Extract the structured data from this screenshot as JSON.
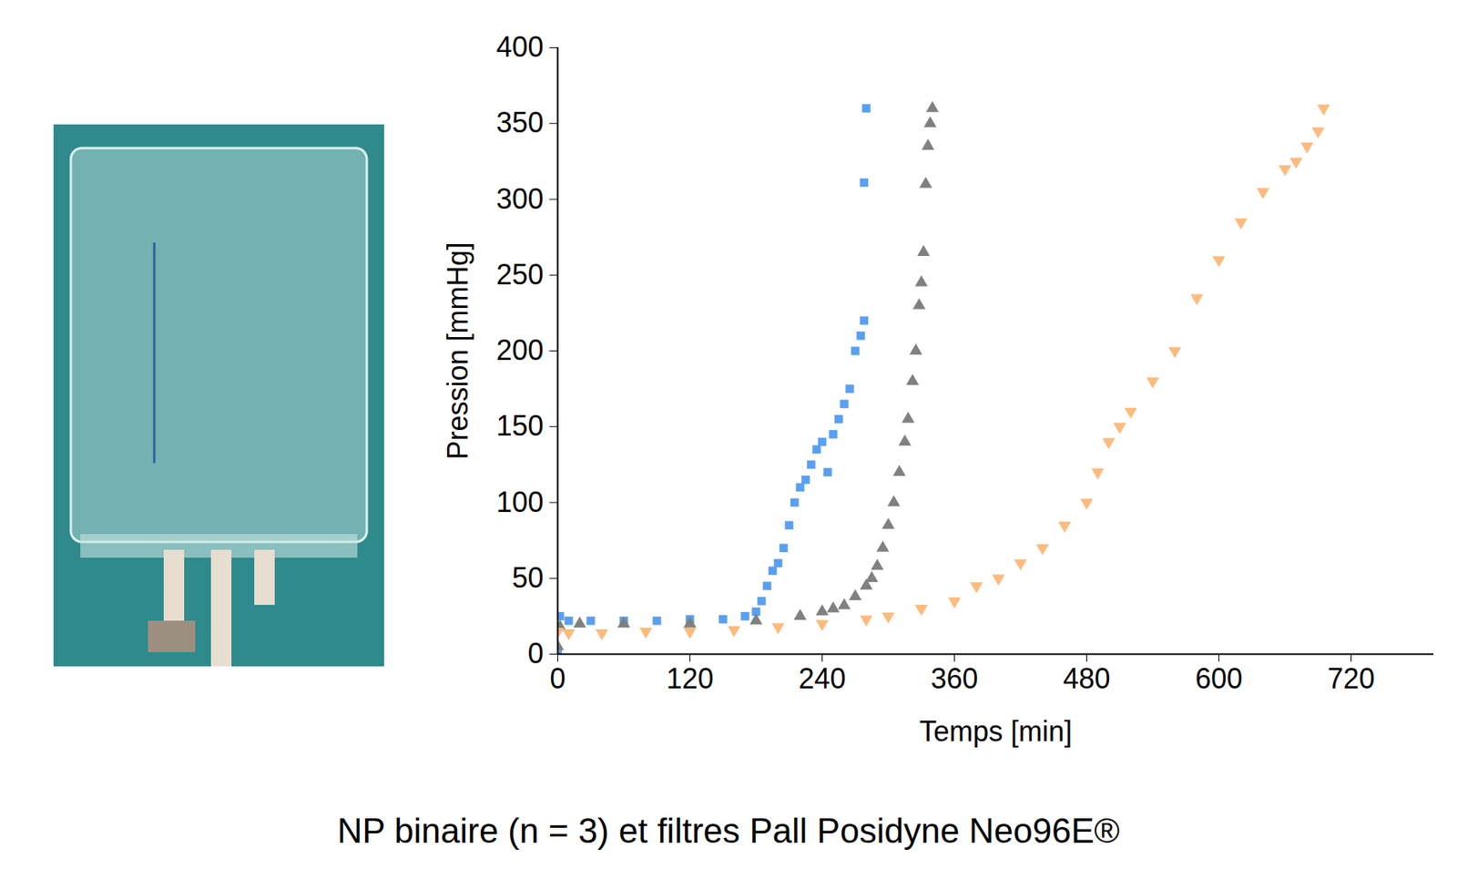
{
  "chart_data": {
    "type": "scatter",
    "title": "NP binaire (n = 3) et filtres Pall Posidyne Neo96E®",
    "x_label": "Temps [min]",
    "y_label": "Pression [mmHg]",
    "xlim": [
      0,
      795
    ],
    "ylim": [
      0,
      400
    ],
    "xticks": [
      0,
      120,
      240,
      360,
      480,
      600,
      720
    ],
    "yticks": [
      0,
      50,
      100,
      150,
      200,
      250,
      300,
      350,
      400
    ],
    "grid": false,
    "series": [
      {
        "color": "#5aa0f0",
        "marker": "square",
        "x": [
          0,
          2,
          10,
          30,
          60,
          90,
          120,
          150,
          170,
          180,
          185,
          190,
          195,
          200,
          205,
          210,
          215,
          220,
          225,
          230,
          235,
          240,
          245,
          250,
          255,
          260,
          265,
          270,
          275,
          278,
          278,
          280
        ],
        "values": [
          0,
          25,
          22,
          22,
          22,
          22,
          23,
          23,
          25,
          28,
          35,
          45,
          55,
          60,
          70,
          85,
          100,
          110,
          115,
          125,
          135,
          140,
          120,
          145,
          155,
          165,
          175,
          200,
          210,
          220,
          311,
          360
        ]
      },
      {
        "color": "#808080",
        "marker": "triangle",
        "x": [
          0,
          2,
          20,
          60,
          120,
          180,
          220,
          240,
          250,
          260,
          270,
          280,
          285,
          290,
          295,
          300,
          305,
          310,
          315,
          318,
          322,
          325,
          328,
          330,
          332,
          334,
          336,
          338,
          340
        ],
        "values": [
          5,
          18,
          20,
          20,
          20,
          22,
          25,
          28,
          30,
          32,
          38,
          45,
          50,
          58,
          70,
          85,
          100,
          120,
          140,
          155,
          180,
          200,
          230,
          245,
          265,
          310,
          335,
          350,
          360
        ]
      },
      {
        "color": "#fdbb7d",
        "marker": "triangle-down",
        "x": [
          0,
          10,
          40,
          80,
          120,
          160,
          200,
          240,
          280,
          300,
          330,
          360,
          380,
          400,
          420,
          440,
          460,
          480,
          490,
          500,
          510,
          520,
          540,
          560,
          580,
          600,
          620,
          640,
          660,
          670,
          680,
          690,
          695
        ],
        "values": [
          15,
          14,
          14,
          15,
          15,
          16,
          18,
          20,
          23,
          25,
          30,
          35,
          45,
          50,
          60,
          70,
          85,
          100,
          120,
          140,
          150,
          160,
          180,
          200,
          235,
          260,
          285,
          305,
          320,
          325,
          335,
          345,
          360
        ]
      }
    ]
  }
}
